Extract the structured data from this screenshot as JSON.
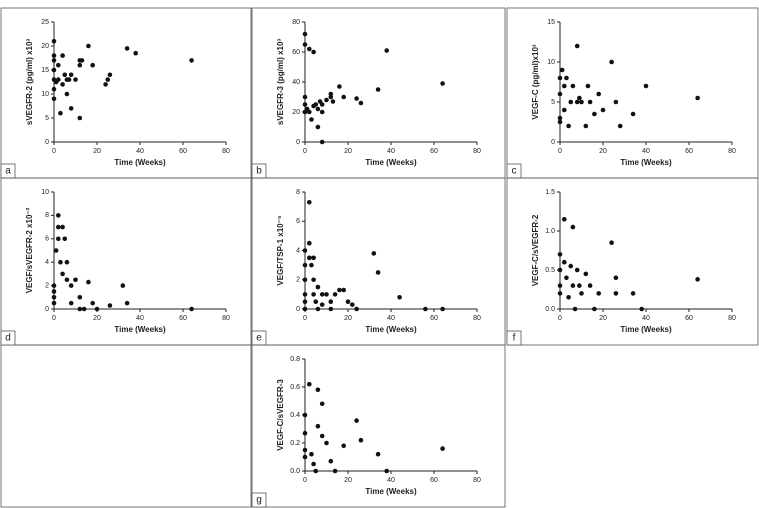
{
  "chart_data": [
    {
      "type": "scatter",
      "panel_label": "a",
      "ylabel": "sVEGFR-2 (pg/ml) x10³",
      "xlabel": "Time (Weeks)",
      "xlim": [
        0,
        80
      ],
      "xticks": [
        0,
        20,
        40,
        60,
        80
      ],
      "ylim": [
        0,
        25
      ],
      "yticks": [
        0,
        5,
        10,
        15,
        20,
        25
      ],
      "color": "#111",
      "x": [
        0,
        0,
        0,
        0,
        0,
        0,
        0,
        1,
        2,
        2,
        3,
        4,
        4,
        5,
        6,
        6,
        7,
        8,
        8,
        10,
        12,
        12,
        12,
        13,
        16,
        18,
        24,
        25,
        26,
        34,
        38,
        64
      ],
      "values": [
        21,
        18,
        17,
        15,
        13,
        11,
        9,
        12.5,
        16,
        13,
        6,
        18,
        12,
        14,
        13,
        10,
        13,
        14,
        7,
        13,
        17,
        16,
        5,
        17,
        20,
        16,
        12,
        13,
        14,
        19.5,
        18.5,
        17
      ]
    },
    {
      "type": "scatter",
      "panel_label": "b",
      "ylabel": "sVEGFR-3 (pg/ml) x10³",
      "xlabel": "Time (Weeks)",
      "xlim": [
        0,
        80
      ],
      "xticks": [
        0,
        20,
        40,
        60,
        80
      ],
      "ylim": [
        0,
        80
      ],
      "yticks": [
        0,
        20,
        40,
        60,
        80
      ],
      "color": "#111",
      "x": [
        0,
        0,
        0,
        0,
        0,
        1,
        2,
        2,
        3,
        4,
        4,
        5,
        6,
        6,
        7,
        8,
        8,
        8,
        10,
        12,
        12,
        13,
        16,
        18,
        24,
        26,
        34,
        38,
        64
      ],
      "values": [
        72,
        65,
        30,
        25,
        20,
        22,
        62,
        20,
        15,
        24,
        60,
        25,
        22,
        10,
        27,
        25,
        20,
        0,
        28,
        32,
        30,
        27,
        37,
        30,
        29,
        26,
        35,
        61,
        39
      ]
    },
    {
      "type": "scatter",
      "panel_label": "c",
      "ylabel": "VEGF-C (pg/ml)x10³",
      "xlabel": "Time (Weeks)",
      "xlim": [
        0,
        80
      ],
      "xticks": [
        0,
        20,
        40,
        60,
        80
      ],
      "ylim": [
        0,
        15
      ],
      "yticks": [
        0,
        5,
        10,
        15
      ],
      "color": "#111",
      "x": [
        0,
        0,
        0,
        0,
        1,
        2,
        2,
        3,
        4,
        5,
        6,
        8,
        8,
        9,
        10,
        12,
        13,
        14,
        16,
        18,
        20,
        24,
        26,
        28,
        34,
        40,
        64
      ],
      "values": [
        8,
        6,
        3,
        2.5,
        9,
        7,
        4,
        8,
        2,
        5,
        7,
        12,
        5,
        5.5,
        5,
        2,
        7,
        5,
        3.5,
        6,
        4,
        10,
        5,
        2,
        3.5,
        7,
        5.5
      ]
    },
    {
      "type": "scatter",
      "panel_label": "d",
      "ylabel": "VEGF/sVEGFR-2 x10⁻²",
      "xlabel": "Time (Weeks)",
      "xlim": [
        0,
        80
      ],
      "xticks": [
        0,
        20,
        40,
        60,
        80
      ],
      "ylim": [
        0,
        10
      ],
      "yticks": [
        0,
        2,
        4,
        6,
        8,
        10
      ],
      "color": "#111",
      "x": [
        0,
        0,
        0,
        0,
        1,
        2,
        2,
        2,
        3,
        4,
        4,
        5,
        6,
        6,
        8,
        8,
        10,
        12,
        12,
        14,
        16,
        18,
        20,
        26,
        32,
        34,
        64
      ],
      "values": [
        2,
        1.5,
        1,
        0.5,
        5,
        8,
        7,
        6,
        4,
        7,
        3,
        6,
        4,
        2.5,
        2,
        0.5,
        2.5,
        1,
        0,
        0,
        2.3,
        0.5,
        0,
        0.3,
        2,
        0.5,
        0
      ]
    },
    {
      "type": "scatter",
      "panel_label": "e",
      "ylabel": "VEGF/TSP-1 x10⁻⁵",
      "xlabel": "Time (Weeks)",
      "xlim": [
        0,
        80
      ],
      "xticks": [
        0,
        20,
        40,
        60,
        80
      ],
      "ylim": [
        0,
        8
      ],
      "yticks": [
        0,
        2,
        4,
        6,
        8
      ],
      "color": "#111",
      "x": [
        0,
        0,
        0,
        0,
        0,
        0,
        2,
        2,
        2,
        3,
        4,
        4,
        4,
        5,
        6,
        6,
        8,
        8,
        10,
        12,
        12,
        14,
        16,
        18,
        20,
        22,
        24,
        32,
        34,
        44,
        56,
        64
      ],
      "values": [
        4,
        3,
        2,
        1,
        0.5,
        0,
        7.3,
        4.5,
        3.5,
        3,
        3.5,
        2,
        1,
        0.5,
        1.5,
        0,
        1,
        0.3,
        1,
        0.5,
        0,
        1,
        1.3,
        1.3,
        0.5,
        0.3,
        0,
        3.8,
        2.5,
        0.8,
        0,
        0
      ]
    },
    {
      "type": "scatter",
      "panel_label": "f",
      "ylabel": "VEGF-C/sVEGFR-2",
      "xlabel": "Time (Weeks)",
      "xlim": [
        0,
        80
      ],
      "xticks": [
        0,
        20,
        40,
        60,
        80
      ],
      "ylim": [
        0,
        1.5
      ],
      "yticks": [
        {
          "value": 0,
          "label": "0.0"
        },
        0.5,
        {
          "value": 1,
          "label": "1.0"
        },
        1.5
      ],
      "color": "#111",
      "x": [
        0,
        0,
        0,
        0,
        2,
        2,
        3,
        4,
        5,
        6,
        6,
        7,
        8,
        9,
        10,
        12,
        14,
        16,
        18,
        24,
        26,
        26,
        34,
        38,
        64
      ],
      "values": [
        0.7,
        0.5,
        0.3,
        0.2,
        1.15,
        0.6,
        0.4,
        0.15,
        0.55,
        1.05,
        0.3,
        0,
        0.5,
        0.3,
        0.2,
        0.45,
        0.3,
        0,
        0.2,
        0.85,
        0.4,
        0.2,
        0.2,
        0,
        0.38
      ]
    },
    {
      "type": "scatter",
      "panel_label": "g",
      "ylabel": "VEGF-C/sVEGFR-3",
      "xlabel": "Time (Weeks)",
      "xlim": [
        0,
        80
      ],
      "xticks": [
        0,
        20,
        40,
        60,
        80
      ],
      "ylim": [
        0,
        0.8
      ],
      "yticks": [
        {
          "value": 0,
          "label": "0.0"
        },
        0.2,
        0.4,
        0.6,
        0.8
      ],
      "color": "#111",
      "x": [
        0,
        0,
        0,
        0,
        2,
        3,
        4,
        5,
        6,
        6,
        8,
        8,
        10,
        12,
        14,
        18,
        24,
        26,
        34,
        38,
        64
      ],
      "values": [
        0.4,
        0.27,
        0.15,
        0.1,
        0.62,
        0.12,
        0.05,
        0,
        0.58,
        0.32,
        0.48,
        0.25,
        0.2,
        0.07,
        0,
        0.18,
        0.36,
        0.22,
        0.12,
        0,
        0.16
      ]
    }
  ]
}
